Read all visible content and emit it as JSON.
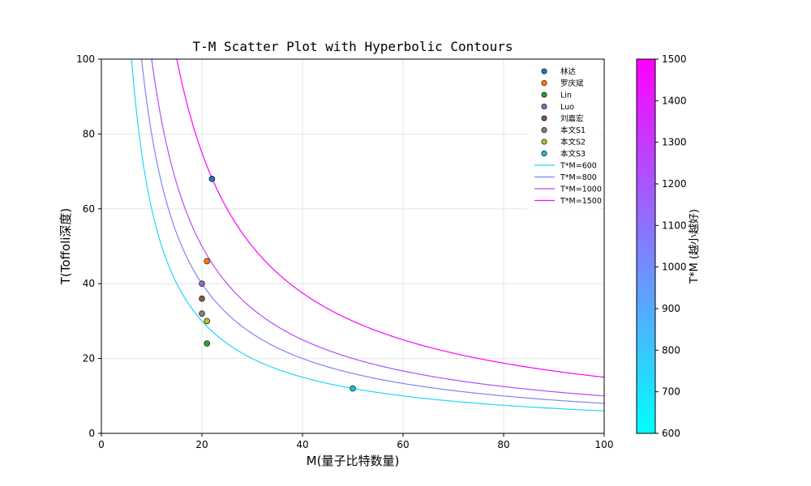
{
  "chart_data": {
    "type": "scatter",
    "title": "T-M Scatter Plot with Hyperbolic Contours",
    "xlabel": "M(量子比特数量)",
    "ylabel": "T(Toffoli深度)",
    "xlim": [
      0,
      100
    ],
    "ylim": [
      0,
      100
    ],
    "xticks": [
      0,
      20,
      40,
      60,
      80,
      100
    ],
    "yticks": [
      0,
      20,
      40,
      60,
      80,
      100
    ],
    "grid": true,
    "legend_position": "top-right",
    "series": [
      {
        "name": "林达",
        "color": "#1f77b4",
        "x": [
          22
        ],
        "y": [
          68
        ]
      },
      {
        "name": "罗庆斌",
        "color": "#ff7f0e",
        "x": [
          21
        ],
        "y": [
          46
        ]
      },
      {
        "name": "Lin",
        "color": "#2ca02c",
        "x": [
          21
        ],
        "y": [
          24
        ]
      },
      {
        "name": "Luo",
        "color": "#9467bd",
        "x": [
          20
        ],
        "y": [
          40
        ]
      },
      {
        "name": "刘嘉宏",
        "color": "#8c564b",
        "x": [
          20
        ],
        "y": [
          36
        ]
      },
      {
        "name": "本文S1",
        "color": "#7f7f7f",
        "x": [
          20
        ],
        "y": [
          32
        ]
      },
      {
        "name": "本文S2",
        "color": "#bcbd22",
        "x": [
          21
        ],
        "y": [
          30
        ]
      },
      {
        "name": "本文S3",
        "color": "#17becf",
        "x": [
          50
        ],
        "y": [
          12
        ]
      }
    ],
    "contours": [
      {
        "name": "T*M=600",
        "product": 600,
        "color": "#1fd7f5"
      },
      {
        "name": "T*M=800",
        "product": 800,
        "color": "#7f84f6"
      },
      {
        "name": "T*M=1000",
        "product": 1000,
        "color": "#b44df6"
      },
      {
        "name": "T*M=1500",
        "product": 1500,
        "color": "#ff00ff"
      }
    ],
    "colorbar": {
      "label": "T*M (越小越好)",
      "range": [
        600,
        1500
      ],
      "ticks": [
        600,
        700,
        800,
        900,
        1000,
        1100,
        1200,
        1300,
        1400,
        1500
      ],
      "color_low": "#00ffff",
      "color_high": "#ff00ff"
    }
  }
}
